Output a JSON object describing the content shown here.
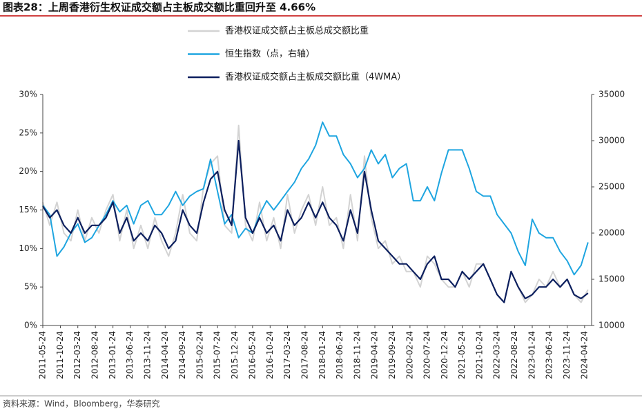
{
  "chart_data": {
    "type": "line",
    "title": "图表28：上周香港衍生权证成交额占主板成交额比重回升至 4.66%",
    "source": "资料来源：Wind，Bloomberg，华泰研究",
    "x": [
      "2011-05-24",
      "2011-07-24",
      "2011-09-24",
      "2011-11-24",
      "2012-01-24",
      "2012-03-24",
      "2012-05-24",
      "2012-07-24",
      "2012-09-24",
      "2012-11-24",
      "2013-01-24",
      "2013-03-24",
      "2013-05-24",
      "2013-07-24",
      "2013-09-24",
      "2013-11-24",
      "2014-01-24",
      "2014-03-24",
      "2014-05-24",
      "2014-07-24",
      "2014-09-24",
      "2014-11-24",
      "2015-01-24",
      "2015-03-24",
      "2015-05-24",
      "2015-07-24",
      "2015-09-24",
      "2015-11-24",
      "2016-01-24",
      "2016-03-24",
      "2016-05-24",
      "2016-07-24",
      "2016-09-24",
      "2016-11-24",
      "2017-01-24",
      "2017-03-24",
      "2017-05-24",
      "2017-07-24",
      "2017-09-24",
      "2017-11-24",
      "2018-01-24",
      "2018-03-24",
      "2018-05-24",
      "2018-07-24",
      "2018-09-24",
      "2018-11-24",
      "2019-01-24",
      "2019-03-24",
      "2019-05-24",
      "2019-07-24",
      "2019-09-24",
      "2019-11-24",
      "2020-01-24",
      "2020-03-24",
      "2020-05-24",
      "2020-07-24",
      "2020-09-24",
      "2020-11-24",
      "2021-01-24",
      "2021-03-24",
      "2021-05-24",
      "2021-07-24",
      "2021-09-24",
      "2021-11-24",
      "2022-01-24",
      "2022-03-24",
      "2022-05-24",
      "2022-07-24",
      "2022-09-24",
      "2022-11-24",
      "2023-01-24",
      "2023-03-24",
      "2023-05-24",
      "2023-07-24",
      "2023-09-24",
      "2023-11-24",
      "2024-01-24",
      "2024-03-24",
      "2024-05-24"
    ],
    "xlim": [
      "2011-05-24",
      "2024-06-24"
    ],
    "xticks": [
      "2011-05-24",
      "2011-10-24",
      "2012-03-24",
      "2012-08-24",
      "2013-01-24",
      "2013-06-24",
      "2013-11-24",
      "2014-04-24",
      "2014-09-24",
      "2015-02-24",
      "2015-07-24",
      "2015-12-24",
      "2016-05-24",
      "2016-10-24",
      "2017-03-24",
      "2017-08-24",
      "2018-01-24",
      "2018-06-24",
      "2018-11-24",
      "2019-04-24",
      "2019-09-24",
      "2020-02-24",
      "2020-07-24",
      "2020-12-24",
      "2021-05-24",
      "2021-10-24",
      "2022-03-24",
      "2022-08-24",
      "2023-01-24",
      "2023-06-24",
      "2023-11-24",
      "2024-04-24"
    ],
    "ylim": [
      0,
      30
    ],
    "yticks": [
      {
        "value": 0,
        "label": "0%"
      },
      {
        "value": 5,
        "label": "5%"
      },
      {
        "value": 10,
        "label": "10%"
      },
      {
        "value": 15,
        "label": "15%"
      },
      {
        "value": 20,
        "label": "20%"
      },
      {
        "value": 25,
        "label": "25%"
      },
      {
        "value": 30,
        "label": "30%"
      }
    ],
    "y2lim": [
      10000,
      35000
    ],
    "y2ticks": [
      10000,
      15000,
      20000,
      25000,
      30000,
      35000
    ],
    "series": [
      {
        "name": "香港权证成交额占主板总成交额比重",
        "color": "#d3d3d3",
        "width": 2,
        "values": [
          16,
          13,
          16,
          12,
          11,
          15,
          11,
          14,
          12,
          15,
          17,
          11,
          15,
          10,
          13,
          10,
          14,
          11,
          9,
          12,
          17,
          12,
          11,
          18,
          21,
          22,
          13,
          12,
          26,
          13,
          11,
          16,
          11,
          14,
          10,
          17,
          12,
          15,
          17,
          13,
          18,
          13,
          14,
          10,
          17,
          11,
          22,
          14,
          10,
          11,
          8,
          9,
          7,
          7,
          5,
          9,
          8,
          6,
          5,
          5,
          7,
          5,
          8,
          8,
          6,
          4,
          3,
          7,
          5,
          3,
          4,
          6,
          5,
          7,
          5,
          6,
          4,
          3,
          4.66
        ]
      },
      {
        "name": "恒生指数（点，右轴）",
        "color": "#1ea5e0",
        "width": 2,
        "axis": "y2",
        "values": [
          23000,
          22000,
          17500,
          18500,
          20000,
          21000,
          19000,
          19500,
          20800,
          22000,
          23500,
          22300,
          23000,
          21000,
          23000,
          23500,
          22000,
          22000,
          23000,
          24500,
          23000,
          24000,
          24500,
          24800,
          28000,
          24500,
          21000,
          22000,
          19500,
          20500,
          20000,
          22000,
          23500,
          22500,
          23500,
          24500,
          25500,
          27000,
          28000,
          29500,
          32000,
          30500,
          30500,
          28500,
          27500,
          26000,
          27000,
          29000,
          27500,
          28500,
          26000,
          27000,
          27500,
          23500,
          23500,
          25000,
          23500,
          26500,
          29000,
          29000,
          29000,
          27000,
          24500,
          24000,
          24000,
          22000,
          21000,
          20000,
          18000,
          16500,
          21500,
          20000,
          19500,
          19500,
          18000,
          17000,
          15500,
          16500,
          19000
        ]
      },
      {
        "name": "香港权证成交额占主板成交额比重（4WMA）",
        "color": "#0c1f5e",
        "width": 2.2,
        "values": [
          15.5,
          14,
          15,
          13,
          12,
          14,
          12,
          13,
          13,
          14,
          16,
          12,
          14,
          11,
          12,
          11,
          13,
          12,
          10,
          11,
          15,
          13,
          12,
          16,
          19,
          20,
          15,
          13,
          24,
          14,
          12,
          14,
          12,
          13,
          11,
          15,
          13,
          14,
          16,
          14,
          16,
          14,
          13,
          11,
          15,
          12,
          20,
          15,
          11,
          10,
          9,
          8,
          8,
          7,
          6,
          8,
          9,
          6,
          6,
          5,
          7,
          6,
          7,
          8,
          6,
          4,
          3,
          7,
          5,
          3.5,
          4,
          5,
          5,
          6,
          5,
          6,
          4,
          3.5,
          4.2
        ]
      }
    ]
  }
}
